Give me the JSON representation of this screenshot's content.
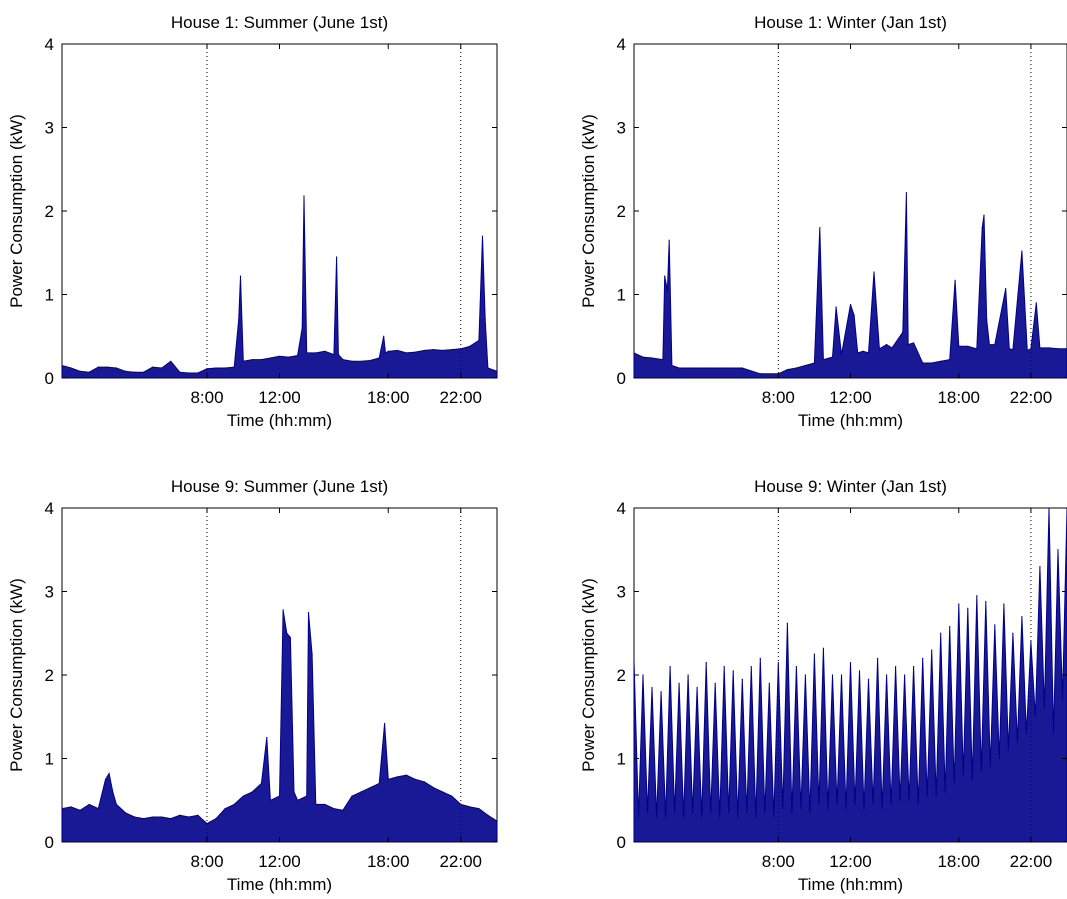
{
  "chart_data": [
    {
      "type": "line",
      "title": "House 1: Summer (June 1st)",
      "xlabel": "Time (hh:mm)",
      "ylabel": "Power Consumption (kW)",
      "xlim": [
        0,
        24
      ],
      "ylim": [
        0,
        4
      ],
      "xticks": [
        8,
        12,
        18,
        22
      ],
      "xticklabels": [
        "8:00",
        "12:00",
        "18:00",
        "22:00"
      ],
      "yticks": [
        0,
        1,
        2,
        3,
        4
      ],
      "yticklabels": [
        "0",
        "1",
        "2",
        "3",
        "4"
      ],
      "vlines": [
        8,
        22
      ],
      "series": [
        {
          "color": "#00008b",
          "x": [
            0,
            0.5,
            1,
            1.5,
            2,
            2.5,
            3,
            3.5,
            4,
            4.5,
            5,
            5.5,
            6,
            6.5,
            7,
            7.5,
            8,
            8.5,
            9,
            9.5,
            9.75,
            9.85,
            10,
            10.5,
            11,
            11.5,
            12,
            12.5,
            13,
            13.25,
            13.35,
            13.5,
            14,
            14.5,
            15,
            15.15,
            15.25,
            15.5,
            16,
            16.5,
            17,
            17.5,
            17.75,
            17.85,
            18,
            18.5,
            19,
            19.5,
            20,
            20.5,
            21,
            21.5,
            22,
            22.5,
            23,
            23.2,
            23.35,
            23.5,
            24
          ],
          "y": [
            0.15,
            0.12,
            0.08,
            0.07,
            0.13,
            0.13,
            0.12,
            0.08,
            0.07,
            0.07,
            0.13,
            0.12,
            0.2,
            0.07,
            0.06,
            0.06,
            0.11,
            0.12,
            0.12,
            0.13,
            0.7,
            1.22,
            0.2,
            0.22,
            0.22,
            0.24,
            0.26,
            0.25,
            0.27,
            0.6,
            2.18,
            0.3,
            0.3,
            0.32,
            0.28,
            1.45,
            0.28,
            0.22,
            0.2,
            0.2,
            0.21,
            0.24,
            0.5,
            0.3,
            0.32,
            0.33,
            0.3,
            0.31,
            0.33,
            0.34,
            0.33,
            0.34,
            0.35,
            0.38,
            0.45,
            1.7,
            0.7,
            0.12,
            0.08
          ]
        }
      ]
    },
    {
      "type": "line",
      "title": "House 1: Winter (Jan 1st)",
      "xlabel": "Time (hh:mm)",
      "ylabel": "Power Consumption (kW)",
      "xlim": [
        0,
        24
      ],
      "ylim": [
        0,
        4
      ],
      "xticks": [
        8,
        12,
        18,
        22
      ],
      "xticklabels": [
        "8:00",
        "12:00",
        "18:00",
        "22:00"
      ],
      "yticks": [
        0,
        1,
        2,
        3,
        4
      ],
      "yticklabels": [
        "0",
        "1",
        "2",
        "3",
        "4"
      ],
      "vlines": [
        8,
        22
      ],
      "series": [
        {
          "color": "#00008b",
          "x": [
            0,
            0.5,
            1,
            1.6,
            1.7,
            1.85,
            1.95,
            2.1,
            2.5,
            3,
            4,
            5,
            6,
            7,
            8,
            8.5,
            9,
            9.5,
            10,
            10.3,
            10.5,
            11,
            11.2,
            11.5,
            12,
            12.2,
            12.4,
            12.7,
            13,
            13.3,
            13.6,
            14,
            14.3,
            14.9,
            15.1,
            15.2,
            15.5,
            16,
            16.5,
            17,
            17.5,
            17.8,
            18,
            18.5,
            19,
            19.3,
            19.4,
            19.55,
            19.7,
            20,
            20.6,
            20.8,
            21,
            21.5,
            21.8,
            22,
            22.3,
            22.5,
            23,
            23.5,
            24
          ],
          "y": [
            0.3,
            0.25,
            0.24,
            0.22,
            1.22,
            1.05,
            1.65,
            0.15,
            0.12,
            0.12,
            0.12,
            0.12,
            0.12,
            0.05,
            0.05,
            0.1,
            0.12,
            0.15,
            0.18,
            1.8,
            0.22,
            0.25,
            0.85,
            0.28,
            0.88,
            0.75,
            0.3,
            0.32,
            0.3,
            1.27,
            0.35,
            0.4,
            0.36,
            0.55,
            2.22,
            0.4,
            0.42,
            0.18,
            0.18,
            0.2,
            0.22,
            1.17,
            0.38,
            0.38,
            0.35,
            1.8,
            1.95,
            0.7,
            0.4,
            0.4,
            1.07,
            0.35,
            0.34,
            1.52,
            0.33,
            0.35,
            0.9,
            0.36,
            0.36,
            0.35,
            0.35
          ]
        }
      ]
    },
    {
      "type": "line",
      "title": "House 9: Summer (June 1st)",
      "xlabel": "Time (hh:mm)",
      "ylabel": "Power Consumption (kW)",
      "xlim": [
        0,
        24
      ],
      "ylim": [
        0,
        4
      ],
      "xticks": [
        8,
        12,
        18,
        22
      ],
      "xticklabels": [
        "8:00",
        "12:00",
        "18:00",
        "22:00"
      ],
      "yticks": [
        0,
        1,
        2,
        3,
        4
      ],
      "yticklabels": [
        "0",
        "1",
        "2",
        "3",
        "4"
      ],
      "vlines": [
        8,
        22
      ],
      "series": [
        {
          "color": "#00008b",
          "x": [
            0,
            0.5,
            1,
            1.5,
            2,
            2.4,
            2.6,
            2.8,
            3,
            3.5,
            4,
            4.5,
            5,
            5.5,
            6,
            6.5,
            7,
            7.5,
            8,
            8.5,
            9,
            9.5,
            10,
            10.5,
            11,
            11.3,
            11.5,
            12,
            12.2,
            12.4,
            12.6,
            12.8,
            13,
            13.5,
            13.6,
            13.8,
            14,
            14.5,
            15,
            15.5,
            16,
            16.5,
            17,
            17.5,
            17.8,
            18,
            18.5,
            19,
            19.5,
            20,
            20.5,
            21,
            21.5,
            22,
            22.5,
            23,
            23.5,
            24
          ],
          "y": [
            0.4,
            0.42,
            0.38,
            0.45,
            0.4,
            0.75,
            0.82,
            0.6,
            0.45,
            0.35,
            0.3,
            0.28,
            0.3,
            0.3,
            0.28,
            0.32,
            0.3,
            0.32,
            0.22,
            0.28,
            0.4,
            0.45,
            0.55,
            0.6,
            0.7,
            1.25,
            0.5,
            0.55,
            2.78,
            2.5,
            2.45,
            0.6,
            0.5,
            0.55,
            2.75,
            2.25,
            0.45,
            0.45,
            0.4,
            0.38,
            0.55,
            0.6,
            0.65,
            0.7,
            1.42,
            0.75,
            0.78,
            0.8,
            0.75,
            0.72,
            0.65,
            0.6,
            0.55,
            0.45,
            0.42,
            0.4,
            0.32,
            0.25
          ]
        }
      ]
    },
    {
      "type": "line",
      "title": "House 9: Winter (Jan 1st)",
      "xlabel": "Time (hh:mm)",
      "ylabel": "Power Consumption (kW)",
      "xlim": [
        0,
        24
      ],
      "ylim": [
        0,
        4
      ],
      "xticks": [
        8,
        12,
        18,
        22
      ],
      "xticklabels": [
        "8:00",
        "12:00",
        "18:00",
        "22:00"
      ],
      "yticks": [
        0,
        1,
        2,
        3,
        4
      ],
      "yticklabels": [
        "0",
        "1",
        "2",
        "3",
        "4"
      ],
      "vlines": [
        8,
        22
      ],
      "series": [
        {
          "color": "#00008b",
          "x": [
            0,
            0.25,
            0.5,
            0.75,
            1,
            1.25,
            1.5,
            1.75,
            2,
            2.25,
            2.5,
            2.75,
            3,
            3.25,
            3.5,
            3.75,
            4,
            4.25,
            4.5,
            4.75,
            5,
            5.25,
            5.5,
            5.75,
            6,
            6.25,
            6.5,
            6.75,
            7,
            7.25,
            7.5,
            7.75,
            8,
            8.25,
            8.5,
            8.75,
            9,
            9.25,
            9.5,
            9.75,
            10,
            10.25,
            10.5,
            10.75,
            11,
            11.25,
            11.5,
            11.75,
            12,
            12.25,
            12.5,
            12.75,
            13,
            13.25,
            13.5,
            13.75,
            14,
            14.25,
            14.5,
            14.75,
            15,
            15.25,
            15.5,
            15.75,
            16,
            16.25,
            16.5,
            16.75,
            17,
            17.25,
            17.5,
            17.75,
            18,
            18.25,
            18.5,
            18.75,
            19,
            19.25,
            19.5,
            19.75,
            20,
            20.25,
            20.5,
            20.75,
            21,
            21.25,
            21.5,
            21.75,
            22,
            22.25,
            22.5,
            22.75,
            23,
            23.25,
            23.5,
            23.75,
            24
          ],
          "y": [
            2.18,
            0.3,
            2.0,
            0.35,
            1.85,
            0.3,
            1.8,
            0.3,
            2.1,
            0.35,
            1.9,
            0.3,
            2.0,
            0.35,
            1.85,
            0.3,
            2.15,
            0.35,
            1.9,
            0.3,
            2.1,
            0.35,
            2.05,
            0.3,
            1.95,
            0.35,
            2.1,
            0.3,
            2.2,
            0.35,
            1.9,
            0.3,
            2.15,
            0.4,
            2.62,
            0.35,
            2.1,
            0.4,
            2.0,
            0.35,
            2.25,
            0.45,
            2.32,
            0.4,
            2.0,
            0.45,
            2.0,
            0.4,
            2.15,
            0.45,
            2.05,
            0.4,
            1.95,
            0.45,
            2.2,
            0.4,
            2.0,
            0.45,
            2.1,
            0.5,
            2.0,
            0.5,
            2.1,
            0.45,
            2.2,
            0.55,
            2.3,
            0.55,
            2.5,
            0.6,
            2.58,
            0.7,
            2.85,
            0.8,
            2.8,
            0.75,
            2.95,
            0.85,
            2.88,
            0.9,
            2.6,
            1.0,
            2.85,
            1.1,
            2.5,
            1.2,
            2.7,
            1.3,
            2.4,
            1.5,
            3.3,
            1.6,
            4.0,
            1.3,
            3.5,
            1.7,
            4.0
          ]
        }
      ]
    }
  ]
}
